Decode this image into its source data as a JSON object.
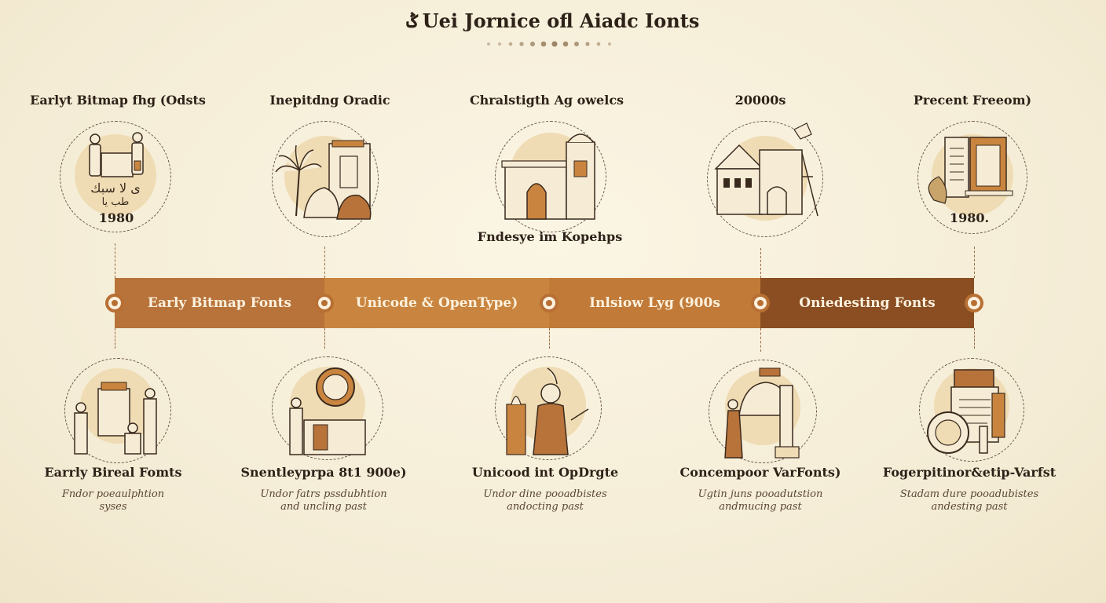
{
  "title": "Uei Jornice ofl Aiadc Ionts",
  "top_labels": [
    "Earlyt Bitmap fhg (Odsts",
    "Inepitdng Oradic",
    "Chralstigth Ag owelcs",
    "20000s",
    "Precent Freeom)"
  ],
  "top_years": [
    "1980",
    "",
    "",
    "",
    "1980."
  ],
  "mid_note": "Fndesye im Kopehps",
  "bands": [
    "Early Bitmap Fonts",
    "Unicode & OpenType)",
    "Inlsiow Lyg (900s",
    "Oniedesting Fonts"
  ],
  "bottom_labels": [
    "Earrly Bireal Fomts",
    "Snentleyprpa 8t1 900e)",
    "Unicood int OpDrgte",
    "Concempoor VarFonts)",
    "Fogerpitinor&etip-Varfst"
  ],
  "bottom_descs": [
    [
      "Fndor poeaulphtion",
      "syses"
    ],
    [
      "Undor fatrs pssdubhtion",
      "and uncling past"
    ],
    [
      "Undor dine pooadbistes",
      "andocting past"
    ],
    [
      "Ugtin juns pooadutstion",
      "andmucing past"
    ],
    [
      "Stadam dure pooadubistes",
      "andesting past"
    ]
  ],
  "colors": {
    "band1": "#b8733a",
    "band2": "#c9853f",
    "band3": "#c17a38",
    "band4": "#8a4e22",
    "accent": "#c9853f"
  }
}
